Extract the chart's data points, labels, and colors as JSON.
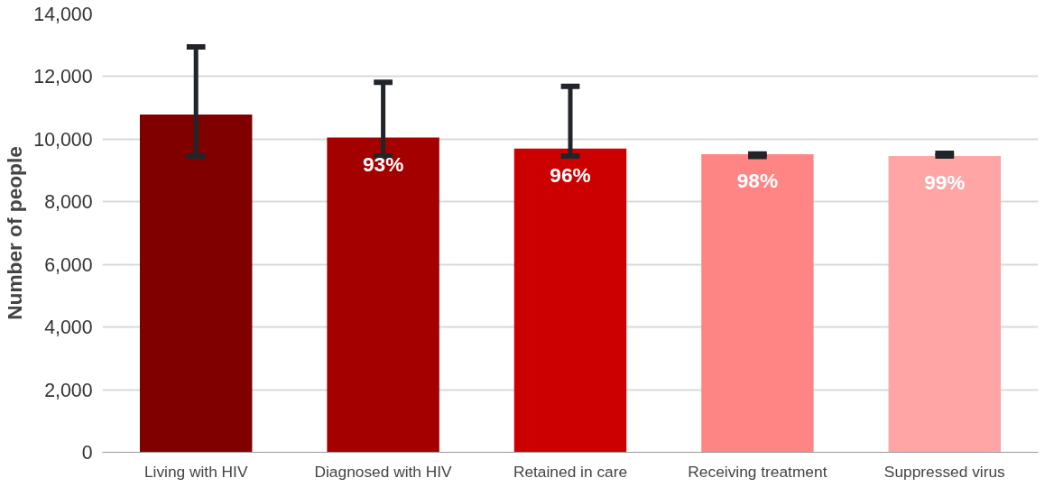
{
  "chart_data": {
    "type": "bar",
    "ylabel": "Number of people",
    "categories": [
      "Living with HIV",
      "Diagnosed with HIV",
      "Retained in care",
      "Receiving treatment",
      "Suppressed virus"
    ],
    "values": [
      10790,
      10050,
      9700,
      9520,
      9460
    ],
    "colors": [
      "#800000",
      "#a50000",
      "#cc0000",
      "#ff8585",
      "#ffa5a5"
    ],
    "errors": [
      [
        9460,
        12950
      ],
      [
        9460,
        11820
      ],
      [
        9460,
        11690
      ],
      [
        9450,
        9530
      ],
      [
        9460,
        9550
      ]
    ],
    "annotations": [
      {
        "text": "93%",
        "x": "Diagnosed with HIV",
        "y": 10050
      },
      {
        "text": "96%",
        "x": "Retained in care",
        "y": 9700
      },
      {
        "text": "98%",
        "x": "Receiving treatment",
        "y": 9520
      },
      {
        "text": "99%",
        "x": "Suppressed virus",
        "y": 9460
      }
    ],
    "ylim": [
      0,
      14000
    ],
    "yticks": [
      {
        "value": 0,
        "label": "0"
      },
      {
        "value": 2000,
        "label": "2,000"
      },
      {
        "value": 4000,
        "label": "4,000"
      },
      {
        "value": 6000,
        "label": "6,000"
      },
      {
        "value": 8000,
        "label": "8,000"
      },
      {
        "value": 10000,
        "label": "10,000"
      },
      {
        "value": 12000,
        "label": "12,000"
      },
      {
        "value": 14000,
        "label": "14,000"
      }
    ],
    "grid": "y"
  }
}
